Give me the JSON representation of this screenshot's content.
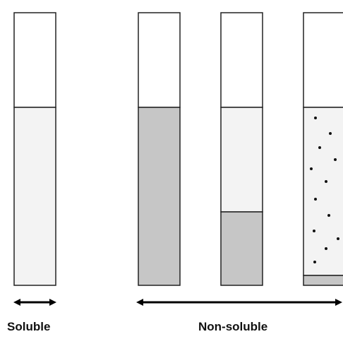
{
  "labels": {
    "soluble": "Soluble",
    "non_soluble": "Non-soluble"
  },
  "colors": {
    "tube_outline": "#222222",
    "empty": "#ffffff",
    "clear_solution": "#f3f3f3",
    "sediment": "#c6c6c6",
    "particles": "#111111",
    "arrows": "#000000"
  }
}
